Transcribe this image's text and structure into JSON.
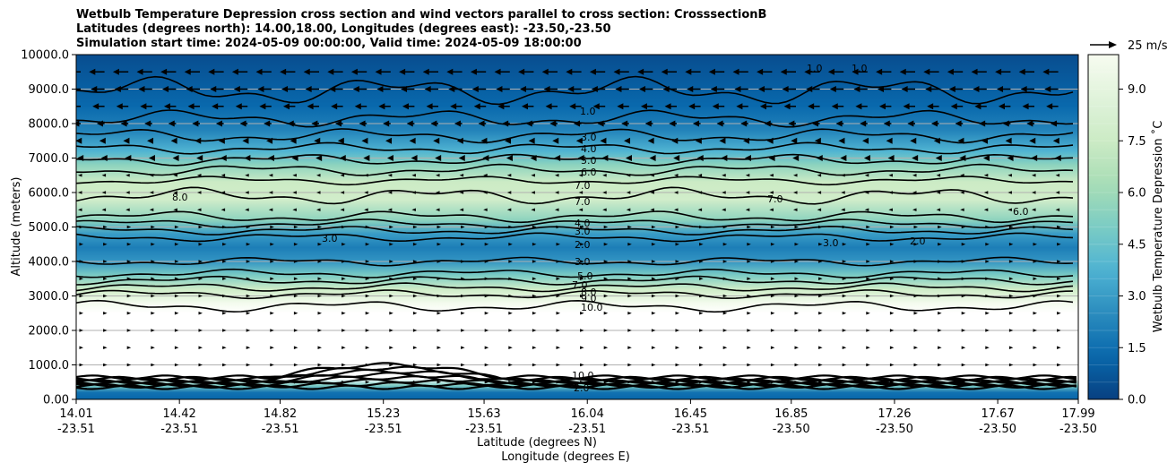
{
  "chart_data": {
    "type": "heatmap",
    "title_lines": [
      "Wetbulb Temperature Depression cross section and wind vectors parallel to cross section: CrosssectionB",
      "Latitudes (degrees north): 14.00,18.00, Longitudes (degrees east): -23.50,-23.50",
      "Simulation start time: 2024-05-09 00:00:00, Valid time: 2024-05-09 18:00:00"
    ],
    "ylabel": "Altitude (meters)",
    "xlabel_lat": "Latitude (degrees N)",
    "xlabel_lon": "Longitude (degrees E)",
    "ylim": [
      0,
      10000
    ],
    "y_ticks": [
      "0.00",
      "1000.0",
      "2000.0",
      "3000.0",
      "4000.0",
      "5000.0",
      "6000.0",
      "7000.0",
      "8000.0",
      "9000.0",
      "10000.0"
    ],
    "x_ticks": [
      {
        "lat": "14.01",
        "lon": "-23.51"
      },
      {
        "lat": "14.42",
        "lon": "-23.51"
      },
      {
        "lat": "14.82",
        "lon": "-23.51"
      },
      {
        "lat": "15.23",
        "lon": "-23.51"
      },
      {
        "lat": "15.63",
        "lon": "-23.51"
      },
      {
        "lat": "16.04",
        "lon": "-23.51"
      },
      {
        "lat": "16.45",
        "lon": "-23.51"
      },
      {
        "lat": "16.85",
        "lon": "-23.50"
      },
      {
        "lat": "17.26",
        "lon": "-23.50"
      },
      {
        "lat": "17.67",
        "lon": "-23.50"
      },
      {
        "lat": "17.99",
        "lon": "-23.50"
      }
    ],
    "grid": "horizontal",
    "colorbar": {
      "label": "Wetbulb Temperature Depression ˚C",
      "range": [
        0,
        10
      ],
      "ticks": [
        "0.0",
        "1.5",
        "3.0",
        "4.5",
        "6.0",
        "7.5",
        "9.0"
      ],
      "colormap": "GnBu_r"
    },
    "quiver_key": "25 m/s",
    "profile": [
      {
        "z": 0,
        "value": 1.2
      },
      {
        "z": 200,
        "value": 1.6
      },
      {
        "z": 400,
        "value": 5.0
      },
      {
        "z": 600,
        "value": 10.5
      },
      {
        "z": 2500,
        "value": 10.5
      },
      {
        "z": 2800,
        "value": 9.8
      },
      {
        "z": 3200,
        "value": 7.6
      },
      {
        "z": 3600,
        "value": 5.0
      },
      {
        "z": 4000,
        "value": 2.8
      },
      {
        "z": 4400,
        "value": 2.0
      },
      {
        "z": 4800,
        "value": 3.0
      },
      {
        "z": 5200,
        "value": 5.5
      },
      {
        "z": 5800,
        "value": 7.8
      },
      {
        "z": 6300,
        "value": 7.5
      },
      {
        "z": 6800,
        "value": 5.5
      },
      {
        "z": 7200,
        "value": 3.8
      },
      {
        "z": 7800,
        "value": 2.2
      },
      {
        "z": 8500,
        "value": 1.3
      },
      {
        "z": 9300,
        "value": 0.8
      },
      {
        "z": 10000,
        "value": 0.4
      }
    ],
    "contour_labels": [
      "1.0",
      "3.0",
      "4.0",
      "5.0",
      "6.0",
      "7.0",
      "7.0",
      "4.0",
      "3.0",
      "2.0",
      "3.0",
      "5.0",
      "7.0",
      "8.0",
      "9.0",
      "10.0",
      "8.0",
      "3.0",
      "7.0",
      "6.0",
      "3.0",
      "2.0",
      "1.0",
      "1.0",
      "10.0",
      "2.0"
    ],
    "wind_rows": [
      {
        "z": 9500,
        "u": -18
      },
      {
        "z": 9000,
        "u": -16
      },
      {
        "z": 8500,
        "u": -14
      },
      {
        "z": 8000,
        "u": -9
      },
      {
        "z": 7500,
        "u": -6
      },
      {
        "z": 7000,
        "u": -4
      },
      {
        "z": 6500,
        "u": -2
      },
      {
        "z": 6000,
        "u": -1
      },
      {
        "z": 5500,
        "u": -1
      },
      {
        "z": 5000,
        "u": 2
      },
      {
        "z": 4500,
        "u": 3
      },
      {
        "z": 4000,
        "u": 3
      },
      {
        "z": 3500,
        "u": 3
      },
      {
        "z": 3000,
        "u": 3
      },
      {
        "z": 2500,
        "u": 2
      },
      {
        "z": 2000,
        "u": 2
      },
      {
        "z": 1500,
        "u": 2
      },
      {
        "z": 1000,
        "u": 2
      },
      {
        "z": 500,
        "u": 2
      }
    ]
  }
}
